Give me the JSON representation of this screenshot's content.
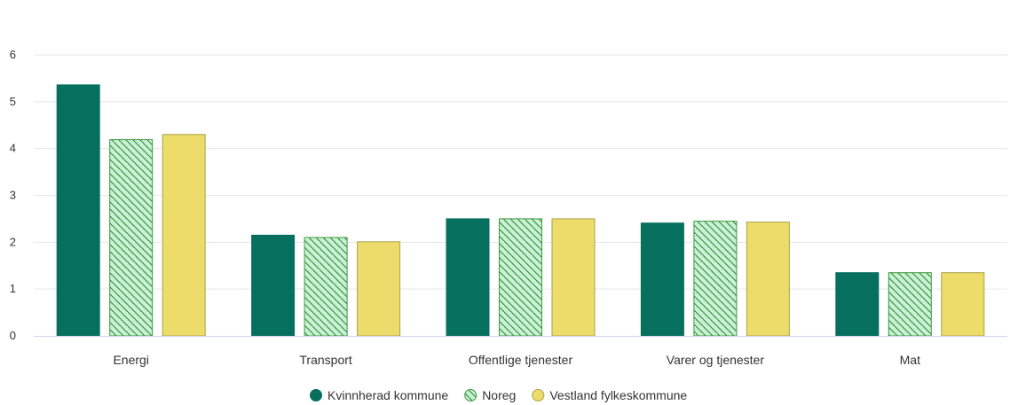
{
  "chart_data": {
    "type": "bar",
    "title": "",
    "xlabel": "",
    "ylabel": "",
    "categories": [
      "Energi",
      "Transport",
      "Offentlige tjenester",
      "Varer og tjenester",
      "Mat"
    ],
    "series": [
      {
        "name": "Kvinnherad kommune",
        "values": [
          5.36,
          2.15,
          2.5,
          2.41,
          1.35
        ],
        "color": "#066f5d",
        "pattern": "solid"
      },
      {
        "name": "Noreg",
        "values": [
          4.19,
          2.1,
          2.5,
          2.45,
          1.35
        ],
        "color": "#c9f1d6",
        "stroke": "#3d9a3d",
        "pattern": "hatch"
      },
      {
        "name": "Vestland fylkeskommune",
        "values": [
          4.3,
          2.01,
          2.5,
          2.43,
          1.35
        ],
        "color": "#eedc6a",
        "stroke": "#a7a34a",
        "pattern": "solid"
      }
    ],
    "ylim": [
      0,
      6
    ],
    "yticks": [
      0,
      1,
      2,
      3,
      4,
      5,
      6
    ],
    "grid": true,
    "legend": "bottom-center"
  }
}
